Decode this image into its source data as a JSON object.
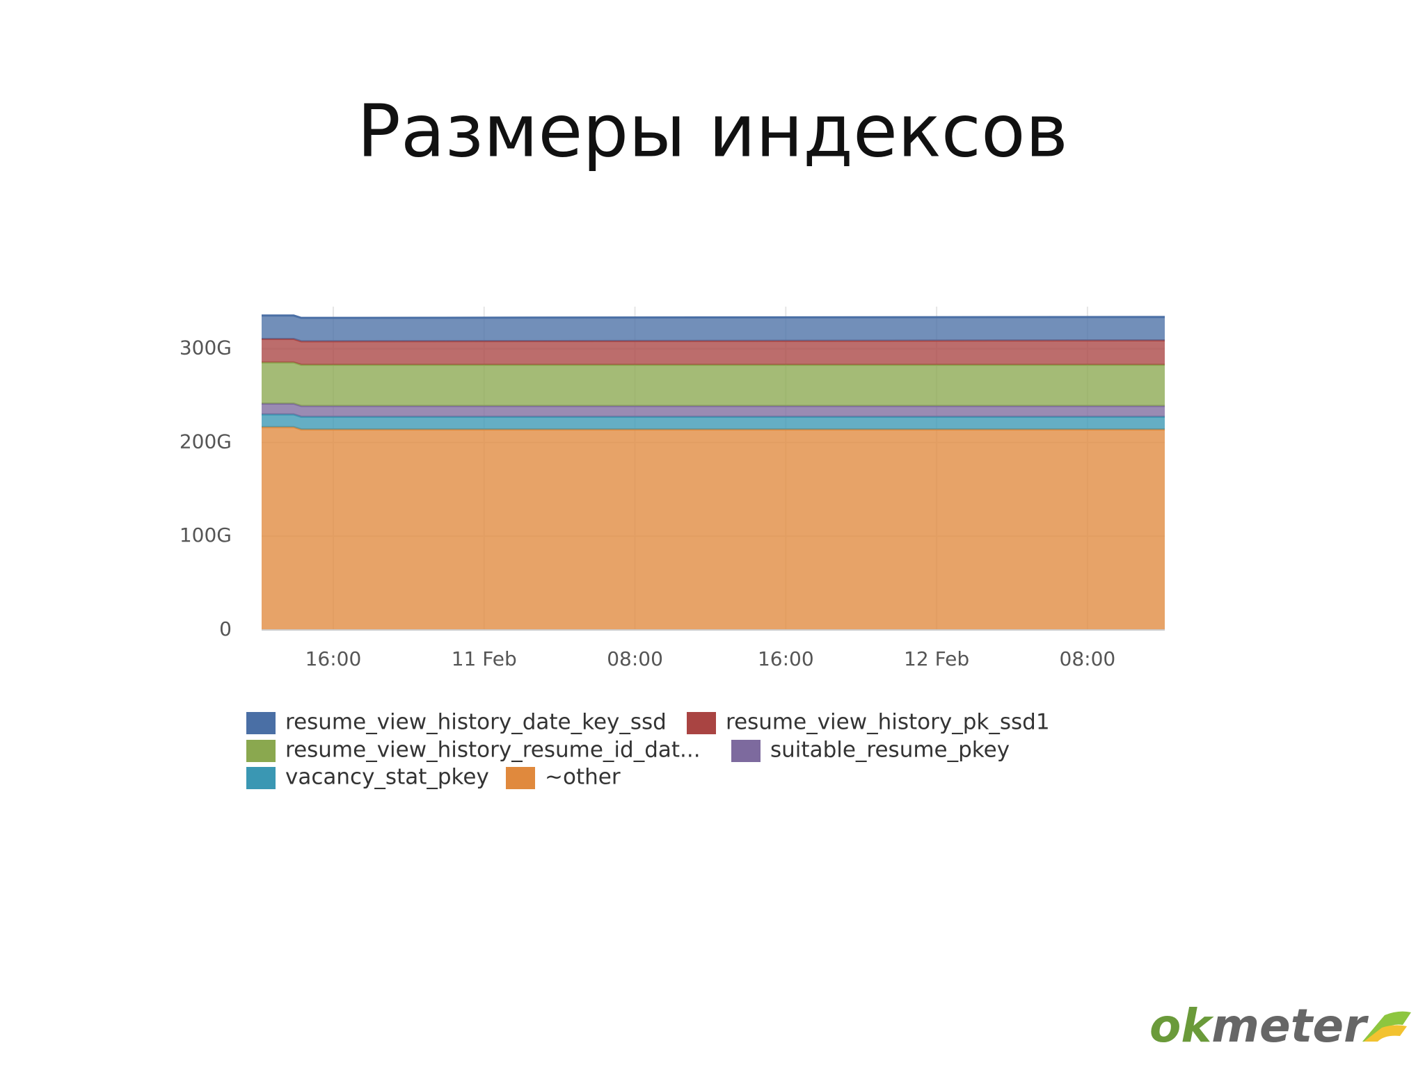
{
  "title": "Размеры индексов",
  "chart_data": {
    "type": "stacked-area",
    "x": [
      12.2,
      13.9,
      14.3,
      36,
      60.1
    ],
    "xlim": [
      12.2,
      60.1
    ],
    "xticks": [
      {
        "value": 16,
        "label": "16:00"
      },
      {
        "value": 24,
        "label": "11 Feb"
      },
      {
        "value": 32,
        "label": "08:00"
      },
      {
        "value": 40,
        "label": "16:00"
      },
      {
        "value": 48,
        "label": "12 Feb"
      },
      {
        "value": 56,
        "label": "08:00"
      }
    ],
    "ylim": [
      0,
      345
    ],
    "yticks": [
      {
        "value": 0,
        "label": "0"
      },
      {
        "value": 100,
        "label": "100G"
      },
      {
        "value": 200,
        "label": "200G"
      },
      {
        "value": 300,
        "label": "300G"
      }
    ],
    "grid": true,
    "series": [
      {
        "name": "~other",
        "color": "#e0893d",
        "values": [
          216.5,
          216.5,
          214,
          214,
          214
        ]
      },
      {
        "name": "vacancy_stat_pkey",
        "color": "#3a97b3",
        "values": [
          13.5,
          13.5,
          13.5,
          13.5,
          13.5
        ]
      },
      {
        "name": "suitable_resume_pkey",
        "color": "#7d6a9e",
        "values": [
          11.5,
          11.5,
          11.5,
          11.5,
          11.5
        ]
      },
      {
        "name": "resume_view_history_resume_id_dat...",
        "color": "#8aa84f",
        "values": [
          44,
          44,
          44,
          44,
          44
        ]
      },
      {
        "name": "resume_view_history_pk_ssd1",
        "color": "#a94442",
        "values": [
          25,
          25,
          25,
          25.5,
          26
        ]
      },
      {
        "name": "resume_view_history_date_key_ssd",
        "color": "#4a6fa5",
        "values": [
          25,
          25,
          25,
          25,
          25
        ]
      }
    ],
    "legend_order": [
      5,
      4,
      3,
      2,
      1,
      0
    ]
  },
  "logo": [
    "ok",
    "meter"
  ]
}
